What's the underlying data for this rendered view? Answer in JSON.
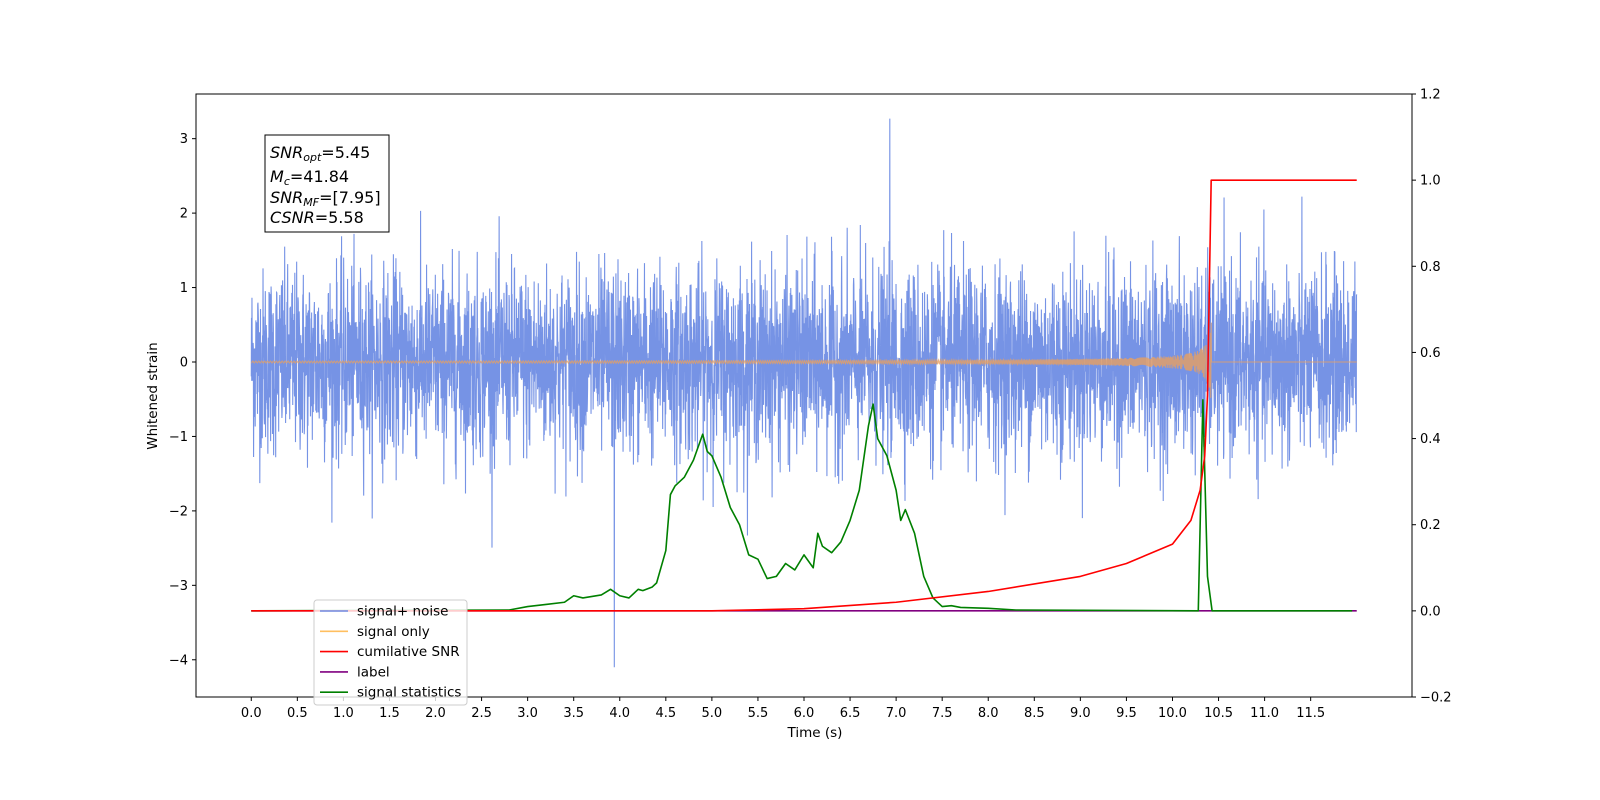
{
  "chart_data": {
    "type": "line",
    "xlabel": "Time (s)",
    "ylabel": "Whitened strain",
    "xlim": [
      -0.6,
      12.6
    ],
    "ylim": [
      -4.5,
      3.6
    ],
    "y2lim": [
      -0.2,
      1.2
    ],
    "xticks": [
      "0.0",
      "0.5",
      "1.0",
      "1.5",
      "2.0",
      "2.5",
      "3.0",
      "3.5",
      "4.0",
      "4.5",
      "5.0",
      "5.5",
      "6.0",
      "6.5",
      "7.0",
      "7.5",
      "8.0",
      "8.5",
      "9.0",
      "9.5",
      "10.0",
      "10.5",
      "11.0",
      "11.5"
    ],
    "yticks": [
      "3",
      "2",
      "1",
      "0",
      "−1",
      "−2",
      "−3",
      "−4"
    ],
    "y2ticks": [
      "1.2",
      "1.0",
      "0.8",
      "0.6",
      "0.4",
      "0.2",
      "0.0",
      "−0.2"
    ],
    "annotation": {
      "snr_opt": {
        "base": "SNR",
        "sub": "opt",
        "value": "=5.45"
      },
      "mc": {
        "base": "M",
        "sub": "c",
        "value": "=41.84"
      },
      "snr_mf": {
        "base": "SNR",
        "sub": "MF",
        "value": "=[7.95]"
      },
      "csnr": {
        "base": "CSNR",
        "sub": "",
        "value": "=5.58"
      }
    },
    "legend": {
      "placement": "lower-left",
      "entries": [
        {
          "label": "signal+ noise",
          "color": "#6f8de4"
        },
        {
          "label": "signal only",
          "color": "#ffbf60"
        },
        {
          "label": "cumilative SNR",
          "color": "#ff0000"
        },
        {
          "label": "label",
          "color": "#800080"
        },
        {
          "label": "signal statistics",
          "color": "#008000"
        }
      ]
    },
    "series": [
      {
        "name": "signal+ noise",
        "axis": "left",
        "color": "#6f8de4",
        "x_range": [
          0.0,
          12.0
        ],
        "noise_sigma": 0.62,
        "max_value": 3.27,
        "min_value": -4.1
      },
      {
        "name": "signal only",
        "axis": "left",
        "color": "#e8a060",
        "chirp_peak_time": 10.42,
        "chirp_amplitude": 0.55
      },
      {
        "name": "cumilative SNR",
        "axis": "right",
        "color": "#ff0000",
        "x": [
          0.0,
          5.0,
          6.0,
          7.0,
          8.0,
          9.0,
          9.5,
          10.0,
          10.2,
          10.3,
          10.35,
          10.38,
          10.4,
          10.42,
          11.0,
          12.0
        ],
        "y": [
          0.0,
          0.0,
          0.005,
          0.02,
          0.045,
          0.08,
          0.11,
          0.155,
          0.21,
          0.28,
          0.36,
          0.5,
          0.75,
          1.0,
          1.0,
          1.0
        ]
      },
      {
        "name": "label",
        "axis": "right",
        "color": "#800080",
        "x": [
          0.0,
          12.0
        ],
        "y": [
          0.0,
          0.0
        ]
      },
      {
        "name": "signal statistics",
        "axis": "right",
        "color": "#008000",
        "x": [
          0.0,
          2.8,
          3.0,
          3.2,
          3.4,
          3.5,
          3.6,
          3.8,
          3.9,
          4.0,
          4.1,
          4.2,
          4.25,
          4.35,
          4.4,
          4.5,
          4.55,
          4.6,
          4.7,
          4.8,
          4.9,
          4.95,
          5.0,
          5.1,
          5.2,
          5.3,
          5.4,
          5.5,
          5.6,
          5.7,
          5.8,
          5.9,
          6.0,
          6.1,
          6.15,
          6.2,
          6.3,
          6.4,
          6.5,
          6.6,
          6.7,
          6.75,
          6.8,
          6.9,
          7.0,
          7.05,
          7.1,
          7.2,
          7.3,
          7.4,
          7.5,
          7.6,
          7.7,
          8.0,
          8.3,
          10.28,
          10.33,
          10.38,
          10.43,
          11.95
        ],
        "y": [
          0.0,
          0.002,
          0.01,
          0.015,
          0.02,
          0.035,
          0.03,
          0.037,
          0.05,
          0.035,
          0.03,
          0.05,
          0.047,
          0.055,
          0.065,
          0.14,
          0.27,
          0.29,
          0.31,
          0.35,
          0.41,
          0.37,
          0.36,
          0.31,
          0.24,
          0.2,
          0.13,
          0.12,
          0.075,
          0.08,
          0.11,
          0.095,
          0.13,
          0.1,
          0.18,
          0.15,
          0.135,
          0.16,
          0.21,
          0.28,
          0.43,
          0.48,
          0.4,
          0.36,
          0.28,
          0.21,
          0.235,
          0.18,
          0.08,
          0.03,
          0.01,
          0.012,
          0.008,
          0.006,
          0.002,
          0.0,
          0.49,
          0.08,
          0.0,
          0.0
        ]
      }
    ]
  }
}
